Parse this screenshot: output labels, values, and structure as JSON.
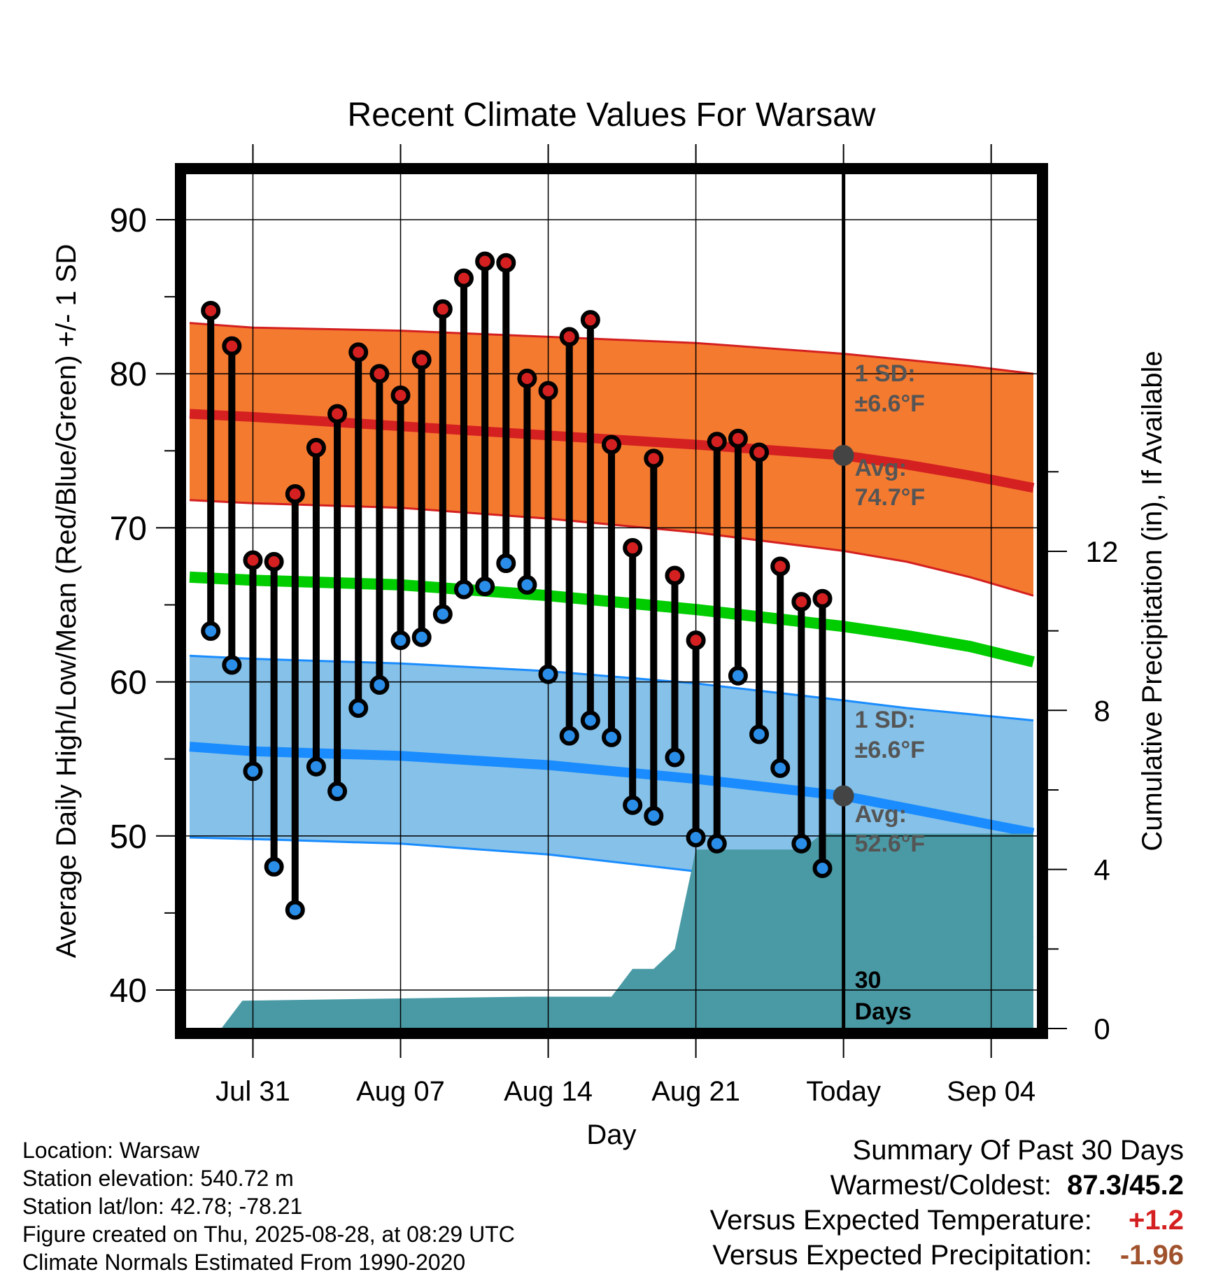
{
  "chart_data": {
    "type": "line",
    "title": "Recent Climate Values For Warsaw",
    "xlabel": "Day",
    "ylabel": "Average Daily High/Low/Mean (Red/Blue/Green) +/- 1 SD",
    "y2label": "Cumulative Precipitation (in), If Available",
    "ylim": [
      37.5,
      93
    ],
    "y2lim": [
      0,
      21.5
    ],
    "xlim": [
      -3.2,
      37.2
    ],
    "x_tick_positions": [
      0,
      7,
      14,
      21,
      28,
      35
    ],
    "x_tick_labels": [
      "Jul 31",
      "Aug 07",
      "Aug 14",
      "Aug 21",
      "Today",
      "Sep 04"
    ],
    "y_ticks": [
      40,
      50,
      60,
      70,
      80,
      90
    ],
    "y2_ticks": [
      0,
      4,
      8,
      12
    ],
    "today_index": 28,
    "grid": true,
    "highs": [
      84.1,
      81.8,
      67.9,
      67.8,
      72.2,
      75.2,
      77.4,
      81.4,
      80.0,
      78.6,
      80.9,
      84.2,
      86.2,
      87.3,
      87.2,
      79.7,
      78.9,
      82.4,
      83.5,
      75.4,
      68.7,
      74.5,
      66.9,
      62.7,
      75.6,
      75.8,
      74.9,
      67.5,
      65.2,
      65.4
    ],
    "lows": [
      63.3,
      61.1,
      54.2,
      48.0,
      45.2,
      54.5,
      52.9,
      58.3,
      59.8,
      62.7,
      62.9,
      64.4,
      66.0,
      66.2,
      67.7,
      66.3,
      60.5,
      56.5,
      57.5,
      56.4,
      52.0,
      51.3,
      55.1,
      49.9,
      49.5,
      60.4,
      56.6,
      54.4,
      49.5,
      47.9
    ],
    "normal_high": {
      "x": [
        -3,
        0,
        7,
        14,
        21,
        28,
        31,
        34,
        37
      ],
      "avg": [
        77.4,
        77.2,
        76.6,
        76.0,
        75.4,
        74.7,
        74.1,
        73.4,
        72.6
      ],
      "upper": [
        83.3,
        83.0,
        82.8,
        82.4,
        82.0,
        81.3,
        80.9,
        80.5,
        80.0
      ],
      "lower": [
        71.8,
        71.6,
        71.3,
        70.6,
        69.7,
        68.5,
        67.8,
        66.8,
        65.6
      ]
    },
    "normal_mean": {
      "x": [
        -3,
        0,
        7,
        14,
        21,
        28,
        31,
        34,
        37
      ],
      "values": [
        66.8,
        66.6,
        66.3,
        65.6,
        64.7,
        63.6,
        63.0,
        62.3,
        61.3
      ]
    },
    "normal_low": {
      "x": [
        -3,
        0,
        7,
        14,
        21,
        28,
        31,
        34,
        37
      ],
      "avg": [
        55.8,
        55.5,
        55.2,
        54.6,
        53.7,
        52.6,
        51.8,
        51.0,
        50.2
      ],
      "upper": [
        61.7,
        61.5,
        61.2,
        60.7,
        59.9,
        58.8,
        58.3,
        57.9,
        57.5
      ],
      "lower": [
        49.9,
        49.8,
        49.5,
        48.8,
        47.7,
        46.2,
        45.2,
        44.3,
        43.4
      ]
    },
    "precipitation": {
      "x": [
        -3,
        -1.5,
        -0.5,
        13,
        17,
        18,
        19,
        20,
        21,
        22,
        24,
        26,
        27,
        37
      ],
      "values": [
        0,
        0,
        0.7,
        0.8,
        0.8,
        1.5,
        1.5,
        2.0,
        4.5,
        4.5,
        4.5,
        4.5,
        4.9,
        4.9
      ]
    },
    "annotations": {
      "high_sd_label": "1 SD:",
      "high_sd_value": "±6.6°F",
      "high_avg_label": "Avg:",
      "high_avg_value": "74.7°F",
      "low_sd_label": "1 SD:",
      "low_sd_value": "±6.6°F",
      "low_avg_label": "Avg:",
      "low_avg_value": "52.6°F",
      "precip_label_1": "30",
      "precip_label_2": "Days"
    },
    "colors": {
      "high_band": "#f47a30",
      "high_line": "#d42020",
      "mean_line": "#00cc00",
      "low_band": "#85c1e8",
      "low_line": "#1a8cff",
      "precip": "#4a9aa5",
      "high_dot": "#d42020",
      "low_dot": "#2a8ee8",
      "today_dot": "#444444"
    }
  },
  "info": {
    "location": "Location: Warsaw",
    "elevation": "Station elevation: 540.72 m",
    "latlon": "Station lat/lon: 42.78; -78.21",
    "created": "Figure created on Thu, 2025-08-28, at 08:29 UTC",
    "normals": "Climate Normals Estimated From 1990-2020"
  },
  "summary": {
    "heading": "Summary Of Past 30 Days",
    "warmest_label": "Warmest/Coldest:",
    "warmest_value": "87.3/45.2",
    "temp_label": "Versus Expected Temperature:",
    "temp_value": "+1.2",
    "temp_color": "#d42020",
    "precip_label": "Versus Expected Precipitation:",
    "precip_value": "-1.96",
    "precip_color": "#a0522d"
  }
}
